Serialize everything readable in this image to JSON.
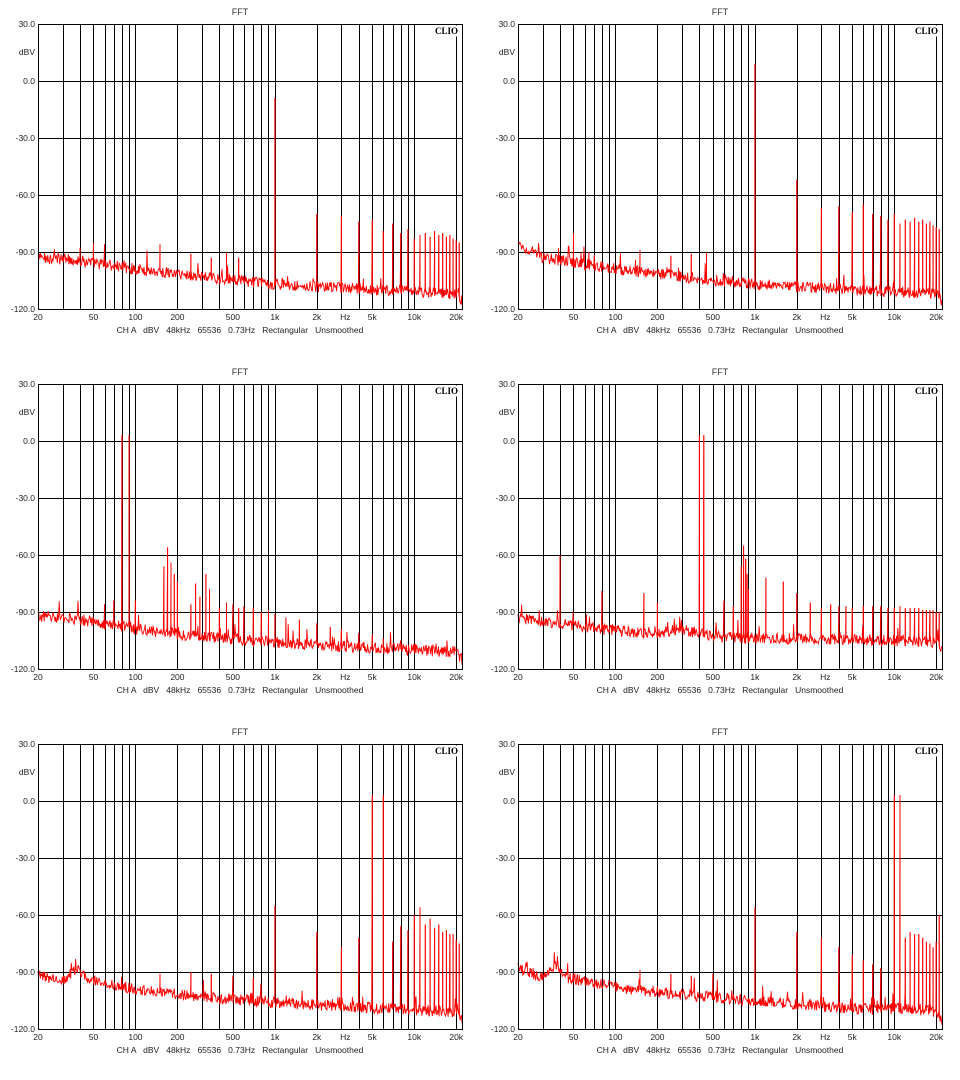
{
  "colors": {
    "trace": "#ff0000",
    "grid": "#000000",
    "background": "#ffffff",
    "text": "#222222"
  },
  "panel_text": {
    "title": "FFT",
    "brand": "CLIO",
    "y_unit": "dBV",
    "x_unit": "Hz",
    "footer": "CH A   dBV   48kHz   65536   0.73Hz   Rectangular   Unsmoothed"
  },
  "chart_data": [
    {
      "type": "line",
      "title": "FFT",
      "xscale": "log",
      "xlim": [
        20,
        22000
      ],
      "ylim": [
        -120,
        30
      ],
      "yticks": [
        30,
        0,
        -30,
        -60,
        -90,
        -120
      ],
      "ytick_labels": [
        "30.0",
        "0.0",
        "-30.0",
        "-60.0",
        "-90.0",
        "-120.0"
      ],
      "xticks": [
        20,
        50,
        100,
        200,
        500,
        1000,
        2000,
        5000,
        10000,
        20000
      ],
      "xtick_labels": [
        "20",
        "50",
        "100",
        "200",
        "500",
        "1k",
        "2k",
        "5k",
        "10k",
        "20k"
      ],
      "ylabel": "dBV",
      "xlabel": "Hz",
      "noise_floor": [
        [
          20,
          -93
        ],
        [
          35,
          -94
        ],
        [
          100,
          -99
        ],
        [
          300,
          -103
        ],
        [
          1000,
          -107
        ],
        [
          3000,
          -109
        ],
        [
          10000,
          -111
        ],
        [
          20000,
          -112
        ],
        [
          22000,
          -116
        ]
      ],
      "peaks": [
        [
          1000,
          -9
        ],
        [
          2000,
          -70
        ],
        [
          3000,
          -71
        ],
        [
          4000,
          -74
        ],
        [
          5000,
          -73
        ],
        [
          6000,
          -79
        ],
        [
          7000,
          -75
        ],
        [
          8000,
          -80
        ],
        [
          9000,
          -78
        ],
        [
          10000,
          -83
        ],
        [
          11000,
          -81
        ],
        [
          12000,
          -80
        ],
        [
          13000,
          -82
        ],
        [
          14000,
          -79
        ],
        [
          15000,
          -81
        ],
        [
          16000,
          -80
        ],
        [
          17000,
          -82
        ],
        [
          18000,
          -81
        ],
        [
          19000,
          -83
        ],
        [
          20000,
          -84
        ],
        [
          21000,
          -85
        ],
        [
          150,
          -86
        ],
        [
          250,
          -91
        ],
        [
          350,
          -93
        ],
        [
          450,
          -90
        ],
        [
          550,
          -93
        ],
        [
          50,
          -85
        ],
        [
          40,
          -88
        ],
        [
          60,
          -86
        ]
      ]
    },
    {
      "type": "line",
      "title": "FFT",
      "xscale": "log",
      "xlim": [
        20,
        22000
      ],
      "ylim": [
        -120,
        30
      ],
      "yticks": [
        30,
        0,
        -30,
        -60,
        -90,
        -120
      ],
      "ytick_labels": [
        "30.0",
        "0.0",
        "-30.0",
        "-60.0",
        "-90.0",
        "-120.0"
      ],
      "xticks": [
        20,
        50,
        100,
        200,
        500,
        1000,
        2000,
        5000,
        10000,
        20000
      ],
      "xtick_labels": [
        "20",
        "50",
        "100",
        "200",
        "500",
        "1k",
        "2k",
        "5k",
        "10k",
        "20k"
      ],
      "ylabel": "dBV",
      "xlabel": "Hz",
      "noise_floor": [
        [
          20,
          -86
        ],
        [
          30,
          -93
        ],
        [
          100,
          -99
        ],
        [
          300,
          -103
        ],
        [
          1000,
          -107
        ],
        [
          3000,
          -109
        ],
        [
          10000,
          -111
        ],
        [
          20000,
          -112
        ],
        [
          22000,
          -117
        ]
      ],
      "peaks": [
        [
          1000,
          9
        ],
        [
          2000,
          -52
        ],
        [
          3000,
          -67
        ],
        [
          4000,
          -66
        ],
        [
          5000,
          -69
        ],
        [
          6000,
          -65
        ],
        [
          7000,
          -70
        ],
        [
          8000,
          -71
        ],
        [
          9000,
          -73
        ],
        [
          10000,
          -70
        ],
        [
          11000,
          -75
        ],
        [
          12000,
          -73
        ],
        [
          13000,
          -74
        ],
        [
          14000,
          -72
        ],
        [
          15000,
          -74
        ],
        [
          16000,
          -73
        ],
        [
          17000,
          -75
        ],
        [
          18000,
          -74
        ],
        [
          19000,
          -76
        ],
        [
          20000,
          -77
        ],
        [
          21000,
          -78
        ],
        [
          50,
          -80
        ],
        [
          150,
          -89
        ],
        [
          250,
          -92
        ],
        [
          350,
          -91
        ],
        [
          450,
          -90
        ]
      ]
    },
    {
      "type": "line",
      "title": "FFT",
      "xscale": "log",
      "xlim": [
        20,
        22000
      ],
      "ylim": [
        -120,
        30
      ],
      "yticks": [
        30,
        0,
        -30,
        -60,
        -90,
        -120
      ],
      "ytick_labels": [
        "30.0",
        "0.0",
        "-30.0",
        "-60.0",
        "-90.0",
        "-120.0"
      ],
      "xticks": [
        20,
        50,
        100,
        200,
        500,
        1000,
        2000,
        5000,
        10000,
        20000
      ],
      "xtick_labels": [
        "20",
        "50",
        "100",
        "200",
        "500",
        "1k",
        "2k",
        "5k",
        "10k",
        "20k"
      ],
      "ylabel": "dBV",
      "xlabel": "Hz",
      "noise_floor": [
        [
          20,
          -92
        ],
        [
          40,
          -94
        ],
        [
          100,
          -99
        ],
        [
          300,
          -103
        ],
        [
          1000,
          -106
        ],
        [
          3000,
          -108
        ],
        [
          10000,
          -110
        ],
        [
          20000,
          -111
        ],
        [
          22000,
          -115
        ]
      ],
      "peaks": [
        [
          80,
          3
        ],
        [
          90,
          3
        ],
        [
          170,
          -56
        ],
        [
          160,
          -66
        ],
        [
          180,
          -64
        ],
        [
          190,
          -70
        ],
        [
          200,
          -74
        ],
        [
          70,
          -84
        ],
        [
          60,
          -86
        ],
        [
          100,
          -84
        ],
        [
          250,
          -86
        ],
        [
          270,
          -75
        ],
        [
          290,
          -82
        ],
        [
          320,
          -70
        ],
        [
          340,
          -78
        ],
        [
          400,
          -88
        ],
        [
          450,
          -85
        ],
        [
          500,
          -86
        ],
        [
          550,
          -88
        ],
        [
          600,
          -87
        ],
        [
          700,
          -88
        ],
        [
          800,
          -90
        ],
        [
          900,
          -89
        ],
        [
          1000,
          -91
        ],
        [
          1200,
          -93
        ],
        [
          1500,
          -94
        ],
        [
          2000,
          -96
        ],
        [
          2500,
          -98
        ],
        [
          3000,
          -99
        ],
        [
          4000,
          -101
        ],
        [
          5000,
          -102
        ],
        [
          6000,
          -104
        ],
        [
          8000,
          -105
        ],
        [
          10000,
          -107
        ]
      ]
    },
    {
      "type": "line",
      "title": "FFT",
      "xscale": "log",
      "xlim": [
        20,
        22000
      ],
      "ylim": [
        -120,
        30
      ],
      "yticks": [
        30,
        0,
        -30,
        -60,
        -90,
        -120
      ],
      "ytick_labels": [
        "30.0",
        "0.0",
        "-30.0",
        "-60.0",
        "-90.0",
        "-120.0"
      ],
      "xticks": [
        20,
        50,
        100,
        200,
        500,
        1000,
        2000,
        5000,
        10000,
        20000
      ],
      "xtick_labels": [
        "20",
        "50",
        "100",
        "200",
        "500",
        "1k",
        "2k",
        "5k",
        "10k",
        "20k"
      ],
      "ylabel": "dBV",
      "xlabel": "Hz",
      "noise_floor": [
        [
          20,
          -93
        ],
        [
          40,
          -96
        ],
        [
          100,
          -100
        ],
        [
          200,
          -101
        ],
        [
          300,
          -99
        ],
        [
          500,
          -103
        ],
        [
          1000,
          -104
        ],
        [
          3000,
          -104
        ],
        [
          10000,
          -105
        ],
        [
          20000,
          -106
        ],
        [
          22000,
          -110
        ]
      ],
      "peaks": [
        [
          40,
          -60
        ],
        [
          80,
          -79
        ],
        [
          160,
          -80
        ],
        [
          400,
          3
        ],
        [
          430,
          3
        ],
        [
          800,
          -66
        ],
        [
          830,
          -55
        ],
        [
          860,
          -62
        ],
        [
          880,
          -70
        ],
        [
          900,
          -78
        ],
        [
          1200,
          -72
        ],
        [
          1600,
          -74
        ],
        [
          2000,
          -80
        ],
        [
          2500,
          -85
        ],
        [
          3000,
          -88
        ],
        [
          3500,
          -86
        ],
        [
          4000,
          -87
        ],
        [
          4500,
          -87
        ],
        [
          5000,
          -88
        ],
        [
          6000,
          -87
        ],
        [
          7000,
          -87
        ],
        [
          8000,
          -87
        ],
        [
          9000,
          -88
        ],
        [
          10000,
          -88
        ],
        [
          11000,
          -87
        ],
        [
          12000,
          -88
        ],
        [
          13000,
          -88
        ],
        [
          14000,
          -88
        ],
        [
          15000,
          -88
        ],
        [
          16000,
          -89
        ],
        [
          17000,
          -89
        ],
        [
          18000,
          -89
        ],
        [
          19000,
          -89
        ],
        [
          20000,
          -90
        ],
        [
          21000,
          -90
        ],
        [
          200,
          -85
        ],
        [
          600,
          -84
        ],
        [
          700,
          -87
        ]
      ]
    },
    {
      "type": "line",
      "title": "FFT",
      "xscale": "log",
      "xlim": [
        20,
        22000
      ],
      "ylim": [
        -120,
        30
      ],
      "yticks": [
        30,
        0,
        -30,
        -60,
        -90,
        -120
      ],
      "ytick_labels": [
        "30.0",
        "0.0",
        "-30.0",
        "-60.0",
        "-90.0",
        "-120.0"
      ],
      "xticks": [
        20,
        50,
        100,
        200,
        500,
        1000,
        2000,
        5000,
        10000,
        20000
      ],
      "xtick_labels": [
        "20",
        "50",
        "100",
        "200",
        "500",
        "1k",
        "2k",
        "5k",
        "10k",
        "20k"
      ],
      "ylabel": "dBV",
      "xlabel": "Hz",
      "noise_floor": [
        [
          20,
          -92
        ],
        [
          30,
          -94
        ],
        [
          38,
          -88
        ],
        [
          45,
          -94
        ],
        [
          100,
          -99
        ],
        [
          300,
          -103
        ],
        [
          1000,
          -106
        ],
        [
          3000,
          -108
        ],
        [
          10000,
          -110
        ],
        [
          20000,
          -111
        ],
        [
          22000,
          -115
        ]
      ],
      "peaks": [
        [
          5000,
          3
        ],
        [
          6000,
          3
        ],
        [
          1000,
          -55
        ],
        [
          2000,
          -69
        ],
        [
          3000,
          -77
        ],
        [
          4000,
          -72
        ],
        [
          7000,
          -74
        ],
        [
          8000,
          -66
        ],
        [
          9000,
          -68
        ],
        [
          10000,
          -60
        ],
        [
          11000,
          -56
        ],
        [
          12000,
          -65
        ],
        [
          13000,
          -62
        ],
        [
          14000,
          -67
        ],
        [
          15000,
          -65
        ],
        [
          16000,
          -69
        ],
        [
          17000,
          -68
        ],
        [
          18000,
          -70
        ],
        [
          19000,
          -70
        ],
        [
          20000,
          -73
        ],
        [
          21000,
          -75
        ],
        [
          150,
          -91
        ],
        [
          250,
          -90
        ],
        [
          350,
          -91
        ],
        [
          500,
          -92
        ],
        [
          700,
          -93
        ]
      ]
    },
    {
      "type": "line",
      "title": "FFT",
      "xscale": "log",
      "xlim": [
        20,
        22000
      ],
      "ylim": [
        -120,
        30
      ],
      "yticks": [
        30,
        0,
        -30,
        -60,
        -90,
        -120
      ],
      "ytick_labels": [
        "30.0",
        "0.0",
        "-30.0",
        "-60.0",
        "-90.0",
        "-120.0"
      ],
      "xticks": [
        20,
        50,
        100,
        200,
        500,
        1000,
        2000,
        5000,
        10000,
        20000
      ],
      "xtick_labels": [
        "20",
        "50",
        "100",
        "200",
        "500",
        "1k",
        "2k",
        "5k",
        "10k",
        "20k"
      ],
      "ylabel": "dBV",
      "xlabel": "Hz",
      "noise_floor": [
        [
          20,
          -88
        ],
        [
          30,
          -93
        ],
        [
          38,
          -86
        ],
        [
          45,
          -93
        ],
        [
          100,
          -98
        ],
        [
          300,
          -102
        ],
        [
          1000,
          -105
        ],
        [
          3000,
          -108
        ],
        [
          8000,
          -110
        ],
        [
          10000,
          -109
        ],
        [
          20000,
          -111
        ],
        [
          22000,
          -116
        ]
      ],
      "peaks": [
        [
          10000,
          3
        ],
        [
          11000,
          3
        ],
        [
          1000,
          -56
        ],
        [
          2000,
          -69
        ],
        [
          3000,
          -72
        ],
        [
          4000,
          -77
        ],
        [
          5000,
          -81
        ],
        [
          6000,
          -84
        ],
        [
          7000,
          -86
        ],
        [
          8000,
          -88
        ],
        [
          12000,
          -72
        ],
        [
          13000,
          -69
        ],
        [
          14000,
          -70
        ],
        [
          15000,
          -70
        ],
        [
          16000,
          -72
        ],
        [
          17000,
          -74
        ],
        [
          18000,
          -75
        ],
        [
          19000,
          -77
        ],
        [
          20000,
          -74
        ],
        [
          21000,
          -60
        ],
        [
          150,
          -89
        ],
        [
          250,
          -91
        ],
        [
          350,
          -92
        ],
        [
          500,
          -91
        ]
      ]
    }
  ]
}
